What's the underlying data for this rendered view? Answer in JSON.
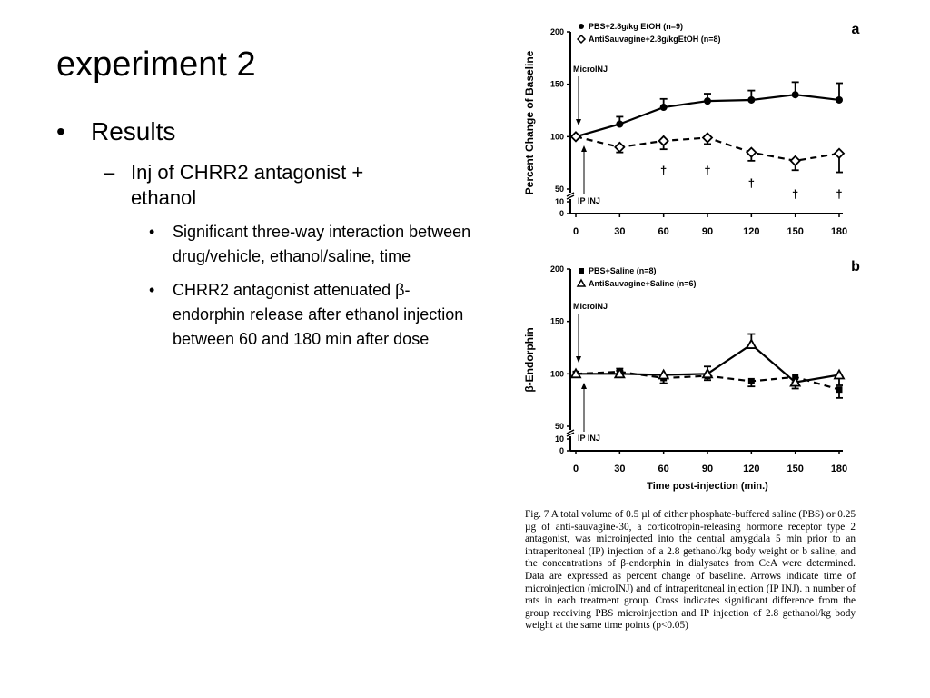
{
  "slide": {
    "title": "experiment 2",
    "bullet_l1": "Results",
    "bullet_l2": "Inj of CHRR2 antagonist + ethanol",
    "bullet_l3": [
      "Significant three-way interaction between drug/vehicle, ethanol/saline, time",
      "CHRR2 antagonist attenuated β-endorphin release after ethanol injection between 60 and 180 min after dose"
    ],
    "marker_l1": "•",
    "marker_l2": "–",
    "marker_l3": "•"
  },
  "caption": "Fig. 7 A total volume of 0.5 µl of either phosphate-buffered saline (PBS) or 0.25 µg of anti-sauvagine-30, a corticotropin-releasing hormone receptor type 2 antagonist, was microinjected into the central amygdala 5 min prior to an intraperitoneal (IP) injection of a 2.8 gethanol/kg body weight or b saline, and the concentrations of β-endorphin in dialysates from CeA were determined. Data are expressed as percent change of baseline. Arrows indicate time of microinjection (microINJ) and of intraperitoneal injection (IP INJ). n number of rats in each treatment group. Cross indicates significant difference from the group receiving PBS microinjection and IP injection of 2.8 gethanol/kg body weight at the same time points (p<0.05)",
  "chart_data": [
    {
      "type": "line",
      "panel_label": "a",
      "title": "",
      "xlabel": "",
      "ylabel": "Percent Change of Baseline",
      "x": [
        0,
        30,
        60,
        90,
        120,
        150,
        180
      ],
      "x_ticks": [
        "0",
        "30",
        "60",
        "90",
        "120",
        "150",
        "180"
      ],
      "y_ticks": [
        "0",
        "10",
        "50",
        "100",
        "150",
        "200"
      ],
      "ylim": [
        0,
        200
      ],
      "axis_break": "between 10 and 50",
      "series": [
        {
          "name": "PBS+2.8g/kg EtOH (n=9)",
          "marker": "filled-circle",
          "line": "solid",
          "values": [
            100,
            112,
            128,
            134,
            135,
            140,
            135
          ],
          "errors": [
            0,
            7,
            8,
            7,
            9,
            12,
            16
          ]
        },
        {
          "name": "AntiSauvagine+2.8g/kgEtOH (n=8)",
          "marker": "open-diamond",
          "line": "dashed",
          "values": [
            100,
            90,
            96,
            99,
            85,
            77,
            84
          ],
          "errors": [
            0,
            5,
            8,
            6,
            8,
            9,
            18
          ]
        }
      ],
      "significance_marks": [
        {
          "x": 60,
          "label": "†"
        },
        {
          "x": 90,
          "label": "†"
        },
        {
          "x": 120,
          "label": "†"
        },
        {
          "x": 150,
          "label": "†"
        },
        {
          "x": 180,
          "label": "†"
        }
      ],
      "annotations": [
        "MicroINJ",
        "IP INJ"
      ],
      "legend_position": "top-left"
    },
    {
      "type": "line",
      "panel_label": "b",
      "title": "",
      "xlabel": "Time post-injection (min.)",
      "ylabel": "β-Endorphin",
      "x": [
        0,
        30,
        60,
        90,
        120,
        150,
        180
      ],
      "x_ticks": [
        "0",
        "30",
        "60",
        "90",
        "120",
        "150",
        "180"
      ],
      "y_ticks": [
        "0",
        "10",
        "50",
        "100",
        "150",
        "200"
      ],
      "ylim": [
        0,
        200
      ],
      "axis_break": "between 10 and 50",
      "series": [
        {
          "name": "PBS+Saline (n=8)",
          "marker": "filled-square",
          "line": "dashed",
          "values": [
            100,
            102,
            96,
            98,
            93,
            97,
            85
          ],
          "errors": [
            0,
            3,
            5,
            4,
            5,
            5,
            8
          ]
        },
        {
          "name": "AntiSauvagine+Saline (n=6)",
          "marker": "open-triangle",
          "line": "solid",
          "values": [
            100,
            100,
            99,
            100,
            128,
            92,
            99
          ],
          "errors": [
            0,
            3,
            8,
            7,
            10,
            6,
            10
          ]
        }
      ],
      "annotations": [
        "MicroINJ",
        "IP INJ"
      ],
      "legend_position": "top-left"
    }
  ]
}
